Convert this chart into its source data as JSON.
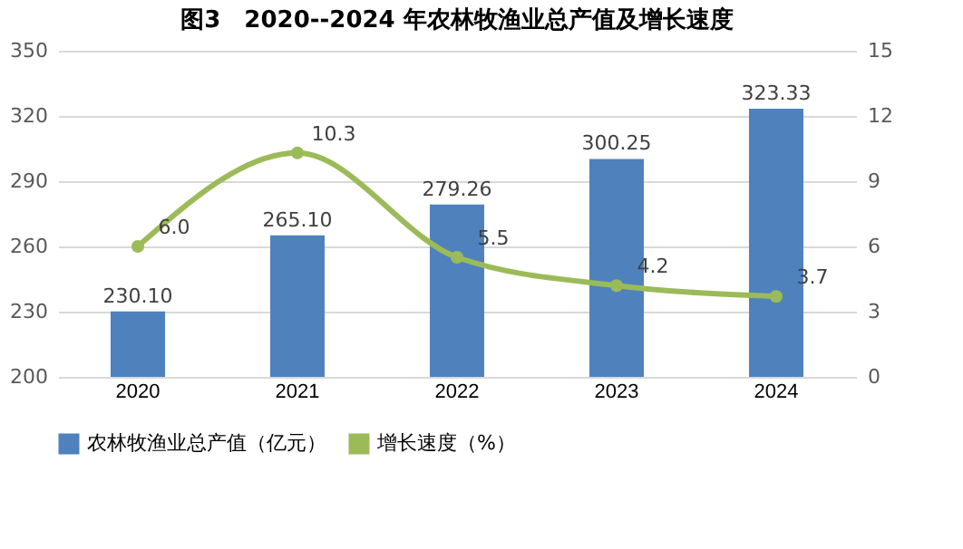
{
  "chart_data": {
    "type": "bar",
    "title": "图3　2020--2024 年农林牧渔业总产值及增长速度",
    "categories": [
      "2020",
      "2021",
      "2022",
      "2023",
      "2024"
    ],
    "series": [
      {
        "name": "农林牧渔业总产值（亿元）",
        "color": "#4f81bd",
        "values": [
          230.1,
          265.1,
          279.26,
          300.25,
          323.33
        ],
        "value_labels": [
          "230.10",
          "265.10",
          "279.26",
          "300.25",
          "323.33"
        ]
      },
      {
        "name": "增长速度（%）",
        "color": "#9bbb59",
        "type": "line",
        "axis": "y2",
        "marker": "circle",
        "values": [
          6.0,
          10.3,
          5.5,
          4.2,
          3.7
        ],
        "value_labels": [
          "6.0",
          "10.3",
          "5.5",
          "4.2",
          "3.7"
        ]
      }
    ],
    "ylim": [
      200,
      350
    ],
    "yticks": [
      200,
      230,
      260,
      290,
      320,
      350
    ],
    "y2lim": [
      0,
      15
    ],
    "y2ticks": [
      0,
      3,
      6,
      9,
      12,
      15
    ],
    "grid": "y",
    "legend": "bottom",
    "data_labels": true
  }
}
